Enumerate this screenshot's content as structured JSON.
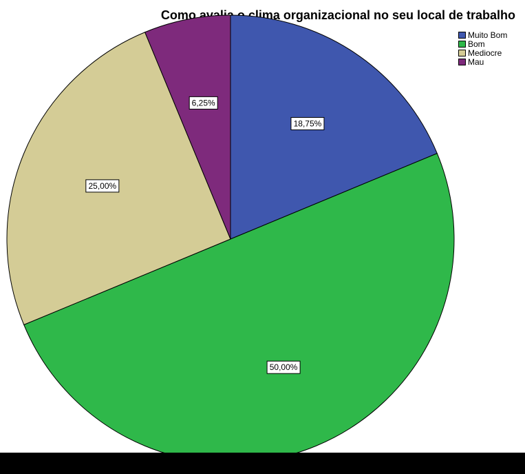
{
  "chart_data": {
    "type": "pie",
    "title": "Como avalia o clima organizacional no seu local de trabalho",
    "categories": [
      "Muito Bom",
      "Bom",
      "Mediocre",
      "Mau"
    ],
    "values": [
      18.75,
      50.0,
      25.0,
      6.25
    ],
    "labels": [
      "18,75%",
      "50,00%",
      "25,00%",
      "6,25%"
    ],
    "colors": [
      "#3f57ae",
      "#2fb84a",
      "#d4cc96",
      "#7e2a7c"
    ],
    "start_angle_deg": 0,
    "direction": "clockwise",
    "legend_position": "top-right"
  }
}
